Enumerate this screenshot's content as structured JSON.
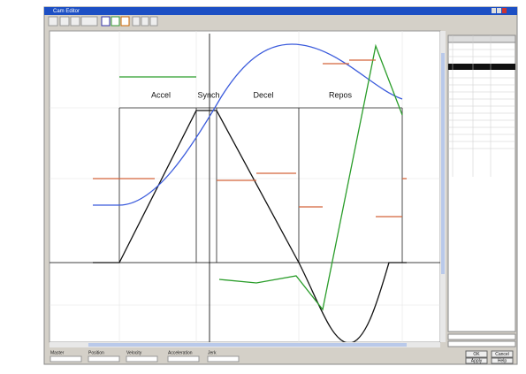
{
  "window": {
    "title": "Cam Editor"
  },
  "phases": [
    "Accel",
    "Synch",
    "Decel",
    "Repos"
  ],
  "buttons": [
    "OK",
    "Cancel",
    "Apply",
    "Help"
  ],
  "status_labels": [
    "Master",
    "Position",
    "Velocity",
    "Acceleration",
    "Jerk"
  ]
}
